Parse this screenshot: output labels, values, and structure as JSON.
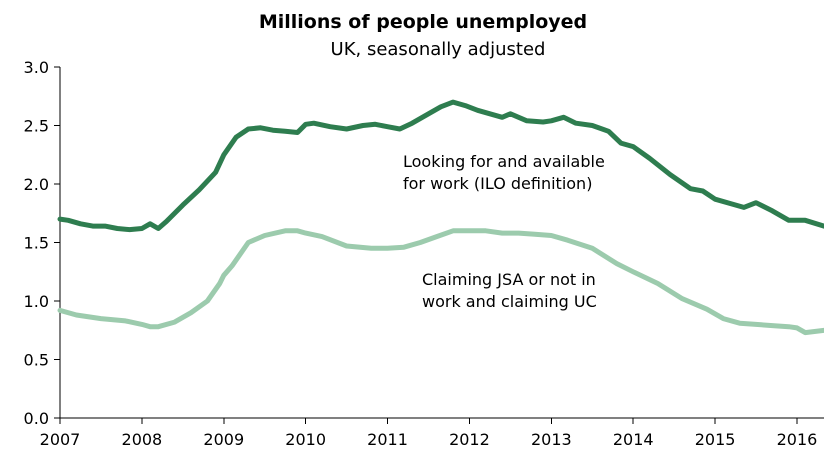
{
  "chart_data": {
    "type": "line",
    "title": "Millions of people unemployed",
    "subtitle": "UK, seasonally adjusted",
    "xlabel": "",
    "ylabel": "",
    "x_ticks": [
      "2007",
      "2008",
      "2009",
      "2010",
      "2011",
      "2012",
      "2013",
      "2014",
      "2015",
      "2016"
    ],
    "y_ticks": [
      "0.0",
      "0.5",
      "1.0",
      "1.5",
      "2.0",
      "2.5",
      "3.0"
    ],
    "xlim": [
      2007.0,
      2016.33
    ],
    "ylim": [
      0,
      3.0
    ],
    "grid": false,
    "legend": "none",
    "series": [
      {
        "label": "Looking for and available\nfor work (ILO definition)",
        "color": "#2e7d4f",
        "x": [
          2007.0,
          2007.1,
          2007.25,
          2007.4,
          2007.55,
          2007.7,
          2007.85,
          2008.0,
          2008.1,
          2008.2,
          2008.3,
          2008.5,
          2008.7,
          2008.9,
          2009.0,
          2009.15,
          2009.3,
          2009.45,
          2009.6,
          2009.75,
          2009.9,
          2010.0,
          2010.1,
          2010.3,
          2010.5,
          2010.7,
          2010.85,
          2011.0,
          2011.15,
          2011.3,
          2011.5,
          2011.65,
          2011.8,
          2011.95,
          2012.1,
          2012.25,
          2012.4,
          2012.5,
          2012.7,
          2012.9,
          2013.0,
          2013.15,
          2013.3,
          2013.5,
          2013.7,
          2013.85,
          2014.0,
          2014.2,
          2014.45,
          2014.7,
          2014.85,
          2015.0,
          2015.2,
          2015.35,
          2015.5,
          2015.7,
          2015.9,
          2016.1,
          2016.33
        ],
        "values": [
          1.7,
          1.69,
          1.66,
          1.64,
          1.64,
          1.62,
          1.61,
          1.62,
          1.66,
          1.62,
          1.68,
          1.82,
          1.95,
          2.1,
          2.25,
          2.4,
          2.47,
          2.48,
          2.46,
          2.45,
          2.44,
          2.51,
          2.52,
          2.49,
          2.47,
          2.5,
          2.51,
          2.49,
          2.47,
          2.52,
          2.6,
          2.66,
          2.7,
          2.67,
          2.63,
          2.6,
          2.57,
          2.6,
          2.54,
          2.53,
          2.54,
          2.57,
          2.52,
          2.5,
          2.45,
          2.35,
          2.32,
          2.22,
          2.08,
          1.96,
          1.94,
          1.87,
          1.83,
          1.8,
          1.84,
          1.77,
          1.69,
          1.69,
          1.64
        ]
      },
      {
        "label": "Claiming JSA or not in\nwork and claiming UC",
        "color": "#9ccbad",
        "x": [
          2007.0,
          2007.2,
          2007.5,
          2007.8,
          2008.0,
          2008.1,
          2008.2,
          2008.4,
          2008.6,
          2008.8,
          2008.95,
          2009.0,
          2009.1,
          2009.3,
          2009.5,
          2009.75,
          2009.9,
          2010.0,
          2010.2,
          2010.5,
          2010.8,
          2011.0,
          2011.2,
          2011.4,
          2011.6,
          2011.8,
          2012.0,
          2012.2,
          2012.4,
          2012.6,
          2012.8,
          2013.0,
          2013.2,
          2013.5,
          2013.8,
          2014.0,
          2014.3,
          2014.6,
          2014.9,
          2015.1,
          2015.3,
          2015.5,
          2015.7,
          2015.9,
          2016.0,
          2016.1,
          2016.33
        ],
        "values": [
          0.92,
          0.88,
          0.85,
          0.83,
          0.8,
          0.78,
          0.78,
          0.82,
          0.9,
          1.0,
          1.15,
          1.22,
          1.3,
          1.5,
          1.56,
          1.6,
          1.6,
          1.58,
          1.55,
          1.47,
          1.45,
          1.45,
          1.46,
          1.5,
          1.55,
          1.6,
          1.6,
          1.6,
          1.58,
          1.58,
          1.57,
          1.56,
          1.52,
          1.45,
          1.32,
          1.25,
          1.15,
          1.02,
          0.93,
          0.85,
          0.81,
          0.8,
          0.79,
          0.78,
          0.77,
          0.73,
          0.75
        ]
      }
    ]
  }
}
